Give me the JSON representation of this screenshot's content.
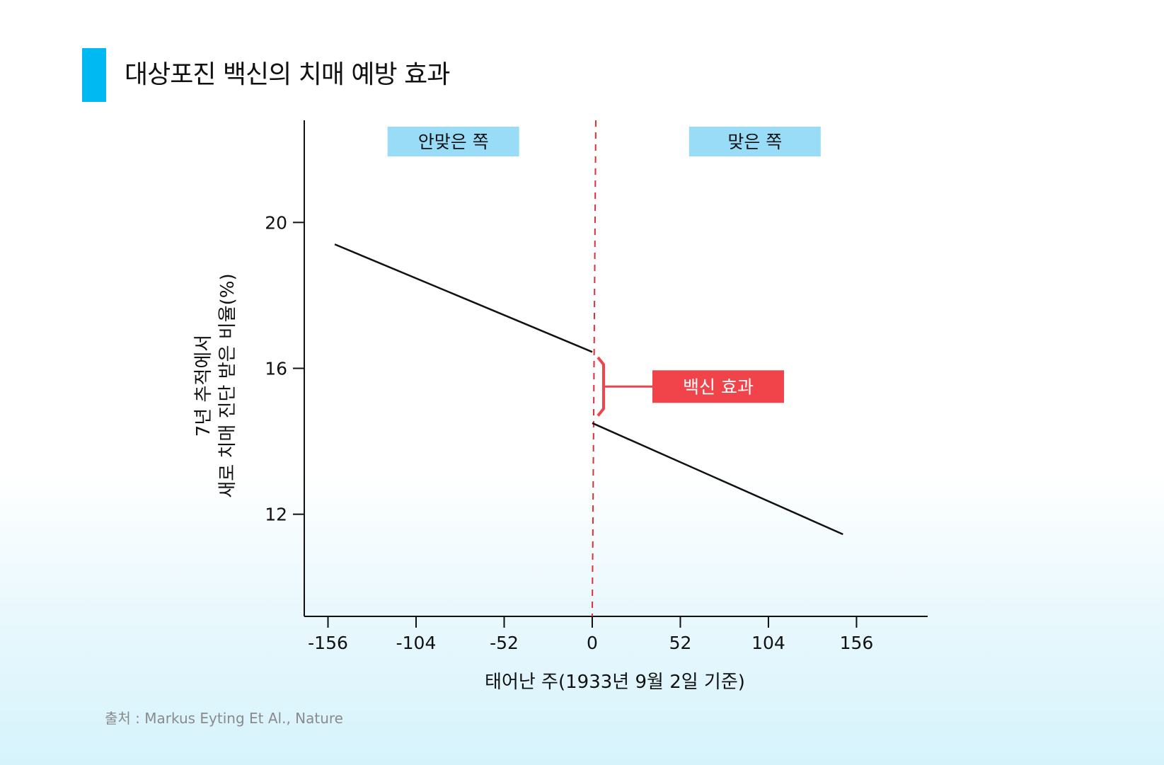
{
  "title": "대상포진 백신의 치매 예방 효과",
  "source": "출처 : Markus Eyting Et Al., Nature",
  "colors": {
    "accent_bar": "#00b9f2",
    "region_label_bg": "#99dcf8",
    "effect_red": "#f0444a",
    "line": "#111111",
    "cutoff_line": "#d9303a"
  },
  "chart_data": {
    "type": "line",
    "xlabel": "태어난 주(1933년 9월 2일 기준)",
    "ylabel_lines": [
      "7년 추적에서",
      "새로 치매 진단 받은 비율(%)"
    ],
    "x_ticks": [
      -156,
      -104,
      -52,
      0,
      52,
      104,
      156
    ],
    "y_ticks": [
      12,
      16,
      20
    ],
    "xlim": [
      -170,
      198
    ],
    "ylim": [
      9.2,
      22.8
    ],
    "series": [
      {
        "x": [
          -152,
          0
        ],
        "y": [
          19.4,
          16.45
        ]
      },
      {
        "x": [
          0,
          148
        ],
        "y": [
          14.5,
          11.45
        ]
      }
    ],
    "cutoff_x": 0,
    "region_labels": [
      {
        "text": "안맞은 쪽",
        "x_center": -82
      },
      {
        "text": "맞은 쪽",
        "x_center": 96
      }
    ],
    "annotation": {
      "text": "백신 효과",
      "y_top": 16.3,
      "y_bottom": 14.7
    }
  }
}
